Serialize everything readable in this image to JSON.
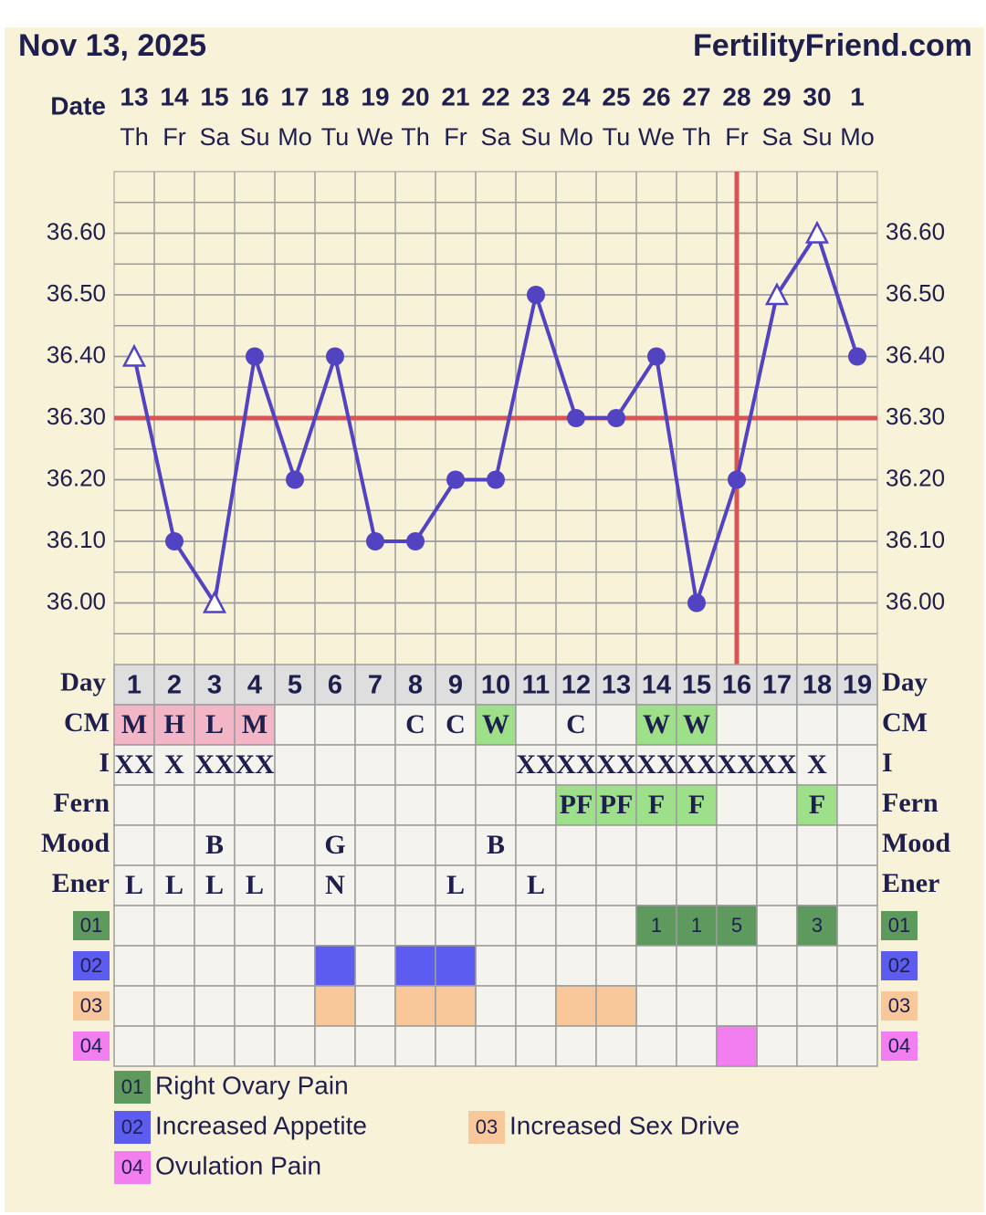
{
  "chart_data": {
    "type": "line",
    "title": "Nov 13, 2025",
    "site": "FertilityFriend.com",
    "date_label": "Date",
    "dates": [
      "13",
      "14",
      "15",
      "16",
      "17",
      "18",
      "19",
      "20",
      "21",
      "22",
      "23",
      "24",
      "25",
      "26",
      "27",
      "28",
      "29",
      "30",
      "1"
    ],
    "weekdays": [
      "Th",
      "Fr",
      "Sa",
      "Su",
      "Mo",
      "Tu",
      "We",
      "Th",
      "Fr",
      "Sa",
      "Su",
      "Mo",
      "Tu",
      "We",
      "Th",
      "Fr",
      "Sa",
      "Su",
      "Mo"
    ],
    "day_label": "Day",
    "categories": [
      1,
      2,
      3,
      4,
      5,
      6,
      7,
      8,
      9,
      10,
      11,
      12,
      13,
      14,
      15,
      16,
      17,
      18,
      19
    ],
    "series": [
      {
        "color": "#5243c2",
        "values": [
          36.4,
          36.1,
          36.0,
          36.4,
          36.2,
          36.4,
          36.1,
          36.1,
          36.2,
          36.2,
          36.5,
          36.3,
          36.3,
          36.4,
          36.0,
          36.2,
          36.5,
          36.6,
          36.4
        ],
        "markers": [
          "triangle",
          "circle",
          "triangle",
          "circle",
          "circle",
          "circle",
          "circle",
          "circle",
          "circle",
          "circle",
          "circle",
          "circle",
          "circle",
          "circle",
          "circle",
          "circle",
          "triangle",
          "triangle",
          "circle"
        ]
      }
    ],
    "ylim": [
      35.9,
      36.7
    ],
    "yticks": [
      {
        "value": 36.0,
        "label": "36.00"
      },
      {
        "value": 36.1,
        "label": "36.10"
      },
      {
        "value": 36.2,
        "label": "36.20"
      },
      {
        "value": 36.3,
        "label": "36.30"
      },
      {
        "value": 36.4,
        "label": "36.40"
      },
      {
        "value": 36.5,
        "label": "36.50"
      },
      {
        "value": 36.6,
        "label": "36.60"
      }
    ],
    "grid": true,
    "coverline": 36.3,
    "ovulation_day": 16,
    "reference_color": "#d95454",
    "rows": [
      {
        "label": "CM",
        "cells": [
          "M",
          "H",
          "L",
          "M",
          null,
          null,
          null,
          "C",
          "C",
          "W",
          null,
          "C",
          null,
          "W",
          "W",
          null,
          null,
          null,
          null
        ],
        "colors": [
          "#f2b6c6",
          "#f2b6c6",
          "#f2b6c6",
          "#f2b6c6",
          null,
          null,
          null,
          null,
          null,
          "#9ee08a",
          null,
          null,
          null,
          "#9ee08a",
          "#9ee08a",
          null,
          null,
          null,
          null
        ]
      },
      {
        "label": "I",
        "cells": [
          "XX",
          "X",
          "XX",
          "XX",
          null,
          null,
          null,
          null,
          null,
          null,
          "XX",
          "XX",
          "XX",
          "XX",
          "XX",
          "XX",
          "XX",
          "X",
          null
        ]
      },
      {
        "label": "Fern",
        "cells": [
          null,
          null,
          null,
          null,
          null,
          null,
          null,
          null,
          null,
          null,
          null,
          "PF",
          "PF",
          "F",
          "F",
          null,
          null,
          "F",
          null
        ],
        "colors": [
          null,
          null,
          null,
          null,
          null,
          null,
          null,
          null,
          null,
          null,
          null,
          "#9ee08a",
          "#9ee08a",
          "#9ee08a",
          "#9ee08a",
          null,
          null,
          "#9ee08a",
          null
        ]
      },
      {
        "label": "Mood",
        "cells": [
          null,
          null,
          "B",
          null,
          null,
          "G",
          null,
          null,
          null,
          "B",
          null,
          null,
          null,
          null,
          null,
          null,
          null,
          null,
          null
        ]
      },
      {
        "label": "Ener",
        "cells": [
          "L",
          "L",
          "L",
          "L",
          null,
          "N",
          null,
          null,
          "L",
          null,
          "L",
          null,
          null,
          null,
          null,
          null,
          null,
          null,
          null
        ]
      }
    ],
    "symptoms": [
      {
        "code": "01",
        "name": "Right Ovary Pain",
        "color": "#5e9a5e",
        "entries": [
          {
            "day": 14,
            "text": "1"
          },
          {
            "day": 15,
            "text": "1"
          },
          {
            "day": 16,
            "text": "5"
          },
          {
            "day": 18,
            "text": "3"
          }
        ]
      },
      {
        "code": "02",
        "name": "Increased Appetite",
        "color": "#5c5cf0",
        "entries": [
          {
            "day": 6
          },
          {
            "day": 8
          },
          {
            "day": 9
          }
        ]
      },
      {
        "code": "03",
        "name": "Increased Sex Drive",
        "color": "#f8c79a",
        "entries": [
          {
            "day": 6
          },
          {
            "day": 8
          },
          {
            "day": 9
          },
          {
            "day": 12
          },
          {
            "day": 13
          }
        ]
      },
      {
        "code": "04",
        "name": "Ovulation Pain",
        "color": "#f27ef0",
        "entries": [
          {
            "day": 16
          }
        ]
      }
    ]
  }
}
